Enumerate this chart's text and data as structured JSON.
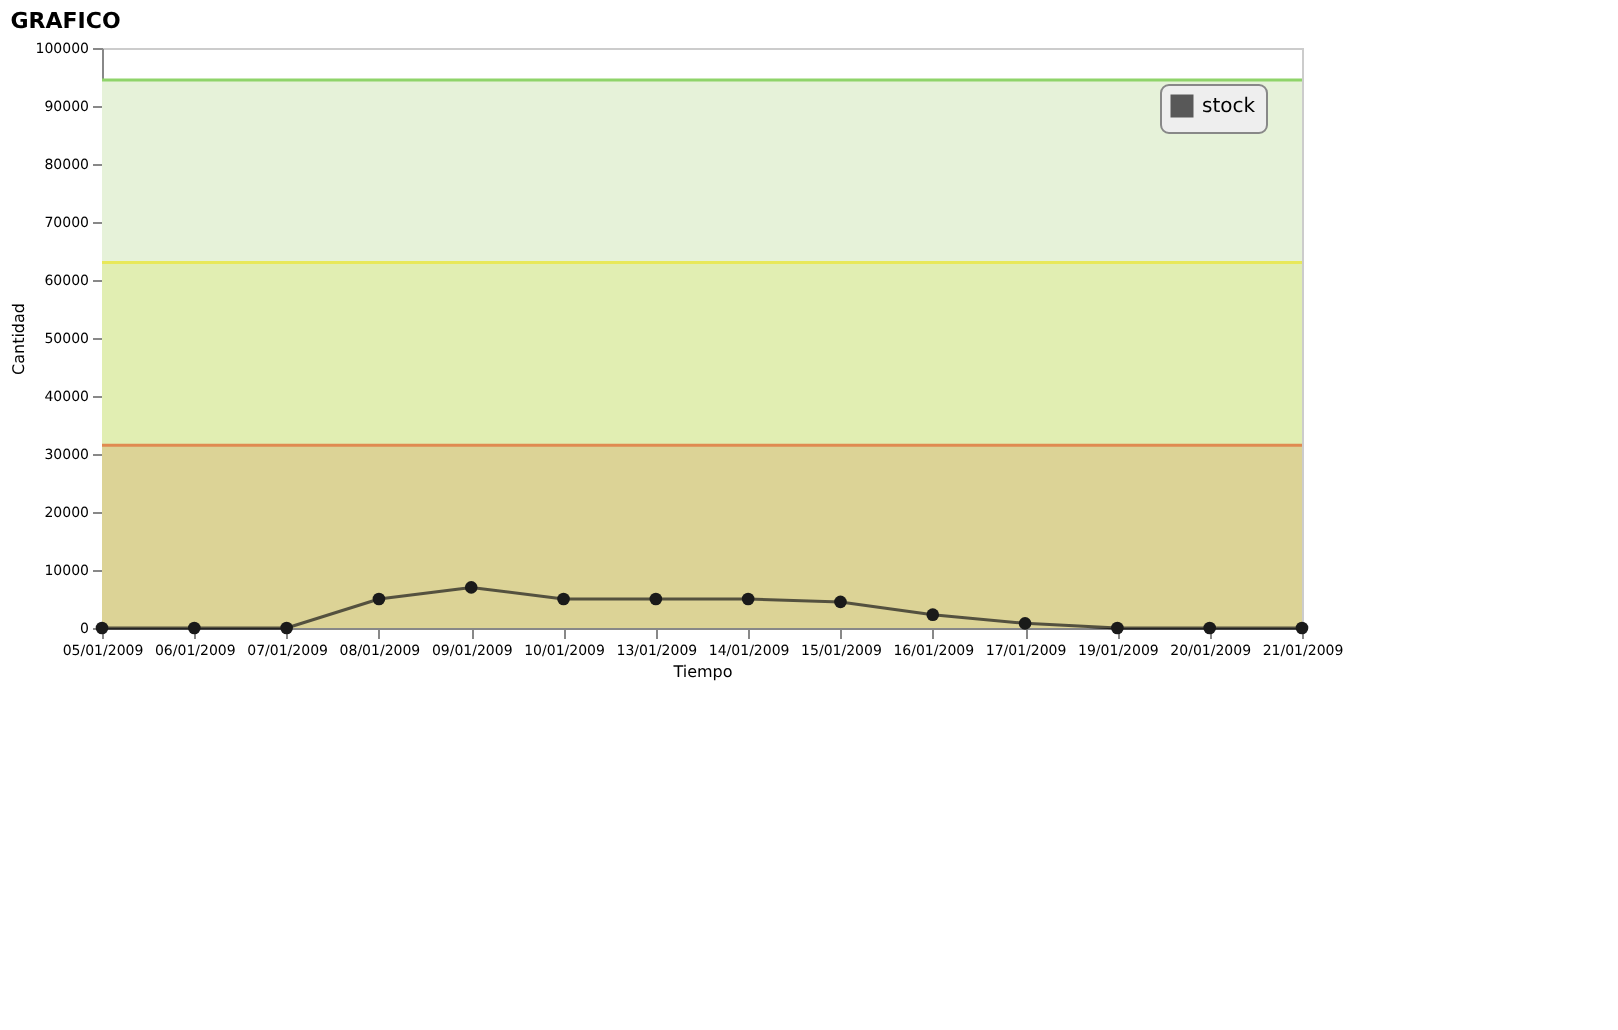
{
  "chart_data": {
    "type": "line",
    "title": "GRAFICO",
    "xlabel": "Tiempo",
    "ylabel": "Cantidad",
    "categories": [
      "05/01/2009",
      "06/01/2009",
      "07/01/2009",
      "08/01/2009",
      "09/01/2009",
      "10/01/2009",
      "13/01/2009",
      "14/01/2009",
      "15/01/2009",
      "16/01/2009",
      "17/01/2009",
      "19/01/2009",
      "20/01/2009",
      "21/01/2009"
    ],
    "series": [
      {
        "name": "stock",
        "color": "#1a1a1a",
        "values": [
          0,
          0,
          0,
          5000,
          7000,
          5000,
          5000,
          5000,
          4500,
          2300,
          800,
          0,
          0,
          0
        ]
      }
    ],
    "ylim": [
      0,
      100000
    ],
    "yticks": [
      0,
      10000,
      20000,
      30000,
      40000,
      50000,
      60000,
      70000,
      80000,
      90000,
      100000
    ],
    "bands": [
      {
        "axis": "y",
        "from": 0,
        "to": 31500,
        "color": "#dcd396"
      },
      {
        "axis": "y",
        "from": 31500,
        "to": 63000,
        "color": "#e1eeb2"
      },
      {
        "axis": "y",
        "from": 63000,
        "to": 94500,
        "color": "#e6f2d9"
      }
    ],
    "ref_lines": [
      {
        "axis": "y",
        "value": 31500,
        "color": "#e08a50"
      },
      {
        "axis": "y",
        "value": 63000,
        "color": "#e8e85a"
      },
      {
        "axis": "y",
        "value": 94500,
        "color": "#8fd46a"
      }
    ],
    "marker": "circle",
    "line_style": "solid",
    "legend": "top right",
    "grid": false
  }
}
